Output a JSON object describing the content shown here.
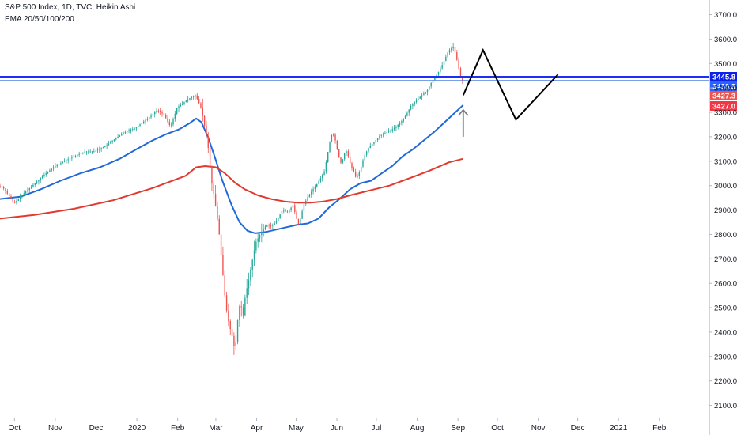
{
  "header": {
    "title": "S&P 500 Index, 1D, TVC, Heikin Ashi",
    "indicator": "EMA 20/50/100/200"
  },
  "chart_data": {
    "type": "candlestick",
    "ylim": [
      2050,
      3760
    ],
    "y_ticks": [
      "2100.0",
      "2200.0",
      "2300.0",
      "2400.0",
      "2500.0",
      "2600.0",
      "2700.0",
      "2800.0",
      "2900.0",
      "3000.0",
      "3100.0",
      "3200.0",
      "3300.0",
      "3400.0",
      "3500.0",
      "3600.0",
      "3700.0"
    ],
    "x_ticks": [
      "Oct",
      "Nov",
      "Dec",
      "2020",
      "Feb",
      "Mar",
      "Apr",
      "May",
      "Jun",
      "Jul",
      "Aug",
      "Sep",
      "Oct",
      "Nov",
      "Dec",
      "2021",
      "Feb"
    ],
    "x_tick_days": [
      25,
      56,
      87,
      118,
      149,
      178,
      209,
      239,
      270,
      300,
      331,
      362,
      392,
      423,
      453,
      484,
      515
    ],
    "x_range_days": [
      14,
      553
    ],
    "price_labels": [
      {
        "text": "3445.8",
        "value": 3445.8,
        "color": "#0d20e6"
      },
      {
        "text": "3430.3",
        "value": 3430.3,
        "color": "#2962ff"
      },
      {
        "text": "3427.3",
        "value": 3427.3,
        "color": "#ef5350"
      },
      {
        "text": "3427.0",
        "value": 3427.0,
        "color": "#f23645"
      }
    ],
    "hlines": [
      {
        "value": 3445.8,
        "color": "#1f2ef0",
        "width": 2
      },
      {
        "value": 3430.3,
        "color": "#4f7ee8",
        "width": 1
      }
    ],
    "ema_series": [
      {
        "color": "#2169d8",
        "points": [
          [
            14,
            2945
          ],
          [
            30,
            2955
          ],
          [
            45,
            2985
          ],
          [
            60,
            3020
          ],
          [
            75,
            3050
          ],
          [
            90,
            3075
          ],
          [
            105,
            3110
          ],
          [
            118,
            3150
          ],
          [
            130,
            3185
          ],
          [
            140,
            3210
          ],
          [
            150,
            3230
          ],
          [
            158,
            3255
          ],
          [
            163,
            3275
          ],
          [
            167,
            3260
          ],
          [
            172,
            3200
          ],
          [
            177,
            3120
          ],
          [
            183,
            3020
          ],
          [
            190,
            2920
          ],
          [
            196,
            2850
          ],
          [
            202,
            2815
          ],
          [
            208,
            2805
          ],
          [
            216,
            2810
          ],
          [
            224,
            2820
          ],
          [
            232,
            2830
          ],
          [
            240,
            2840
          ],
          [
            248,
            2845
          ],
          [
            256,
            2865
          ],
          [
            264,
            2910
          ],
          [
            272,
            2945
          ],
          [
            280,
            2985
          ],
          [
            288,
            3010
          ],
          [
            296,
            3020
          ],
          [
            304,
            3050
          ],
          [
            312,
            3080
          ],
          [
            320,
            3120
          ],
          [
            328,
            3150
          ],
          [
            336,
            3185
          ],
          [
            344,
            3220
          ],
          [
            352,
            3260
          ],
          [
            360,
            3300
          ],
          [
            366,
            3330
          ]
        ]
      },
      {
        "color": "#e0392f",
        "points": [
          [
            14,
            2865
          ],
          [
            40,
            2880
          ],
          [
            70,
            2905
          ],
          [
            100,
            2940
          ],
          [
            130,
            2990
          ],
          [
            155,
            3040
          ],
          [
            163,
            3075
          ],
          [
            170,
            3080
          ],
          [
            178,
            3075
          ],
          [
            185,
            3050
          ],
          [
            193,
            3010
          ],
          [
            200,
            2985
          ],
          [
            210,
            2960
          ],
          [
            220,
            2945
          ],
          [
            230,
            2935
          ],
          [
            240,
            2930
          ],
          [
            250,
            2930
          ],
          [
            260,
            2935
          ],
          [
            270,
            2945
          ],
          [
            280,
            2960
          ],
          [
            295,
            2980
          ],
          [
            310,
            3000
          ],
          [
            325,
            3030
          ],
          [
            340,
            3060
          ],
          [
            355,
            3095
          ],
          [
            366,
            3110
          ]
        ]
      }
    ],
    "candles_smooth": [
      [
        14,
        3000
      ],
      [
        18,
        2990
      ],
      [
        22,
        2960
      ],
      [
        26,
        2925
      ],
      [
        30,
        2950
      ],
      [
        34,
        2970
      ],
      [
        40,
        3000
      ],
      [
        48,
        3040
      ],
      [
        56,
        3075
      ],
      [
        64,
        3100
      ],
      [
        72,
        3120
      ],
      [
        80,
        3140
      ],
      [
        87,
        3140
      ],
      [
        95,
        3160
      ],
      [
        105,
        3200
      ],
      [
        112,
        3225
      ],
      [
        118,
        3235
      ],
      [
        124,
        3260
      ],
      [
        130,
        3285
      ],
      [
        135,
        3310
      ],
      [
        140,
        3290
      ],
      [
        145,
        3240
      ],
      [
        150,
        3320
      ],
      [
        155,
        3340
      ],
      [
        160,
        3360
      ],
      [
        164,
        3370
      ],
      [
        168,
        3320
      ],
      [
        170,
        3270
      ],
      [
        172,
        3210
      ],
      [
        174,
        3140
      ],
      [
        176,
        3020
      ],
      [
        178,
        2960
      ],
      [
        180,
        2890
      ],
      [
        182,
        2800
      ],
      [
        184,
        2680
      ],
      [
        186,
        2560
      ],
      [
        188,
        2470
      ],
      [
        190,
        2420
      ],
      [
        192,
        2380
      ],
      [
        194,
        2320
      ],
      [
        196,
        2450
      ],
      [
        198,
        2530
      ],
      [
        200,
        2460
      ],
      [
        202,
        2560
      ],
      [
        204,
        2600
      ],
      [
        206,
        2660
      ],
      [
        208,
        2720
      ],
      [
        210,
        2770
      ],
      [
        214,
        2810
      ],
      [
        218,
        2840
      ],
      [
        222,
        2835
      ],
      [
        226,
        2860
      ],
      [
        230,
        2900
      ],
      [
        234,
        2890
      ],
      [
        238,
        2920
      ],
      [
        240,
        2880
      ],
      [
        242,
        2840
      ],
      [
        244,
        2870
      ],
      [
        246,
        2920
      ],
      [
        250,
        2960
      ],
      [
        254,
        2990
      ],
      [
        258,
        3020
      ],
      [
        262,
        3060
      ],
      [
        264,
        3120
      ],
      [
        266,
        3180
      ],
      [
        268,
        3220
      ],
      [
        270,
        3190
      ],
      [
        272,
        3140
      ],
      [
        274,
        3090
      ],
      [
        276,
        3110
      ],
      [
        278,
        3150
      ],
      [
        280,
        3120
      ],
      [
        282,
        3080
      ],
      [
        284,
        3060
      ],
      [
        286,
        3030
      ],
      [
        288,
        3050
      ],
      [
        290,
        3080
      ],
      [
        292,
        3120
      ],
      [
        296,
        3160
      ],
      [
        300,
        3180
      ],
      [
        304,
        3205
      ],
      [
        308,
        3215
      ],
      [
        312,
        3225
      ],
      [
        316,
        3240
      ],
      [
        320,
        3260
      ],
      [
        324,
        3290
      ],
      [
        328,
        3330
      ],
      [
        332,
        3350
      ],
      [
        336,
        3370
      ],
      [
        340,
        3390
      ],
      [
        344,
        3430
      ],
      [
        348,
        3460
      ],
      [
        352,
        3500
      ],
      [
        356,
        3550
      ],
      [
        360,
        3570
      ],
      [
        362,
        3530
      ],
      [
        364,
        3480
      ],
      [
        366,
        3430
      ]
    ],
    "arrow": {
      "x": 366,
      "y_from": 3200,
      "y_to": 3310,
      "color": "#787b86"
    },
    "projection": {
      "color": "#000000",
      "points": [
        [
          366,
          3370
        ],
        [
          381,
          3555
        ],
        [
          406,
          3270
        ],
        [
          438,
          3455
        ]
      ]
    }
  }
}
